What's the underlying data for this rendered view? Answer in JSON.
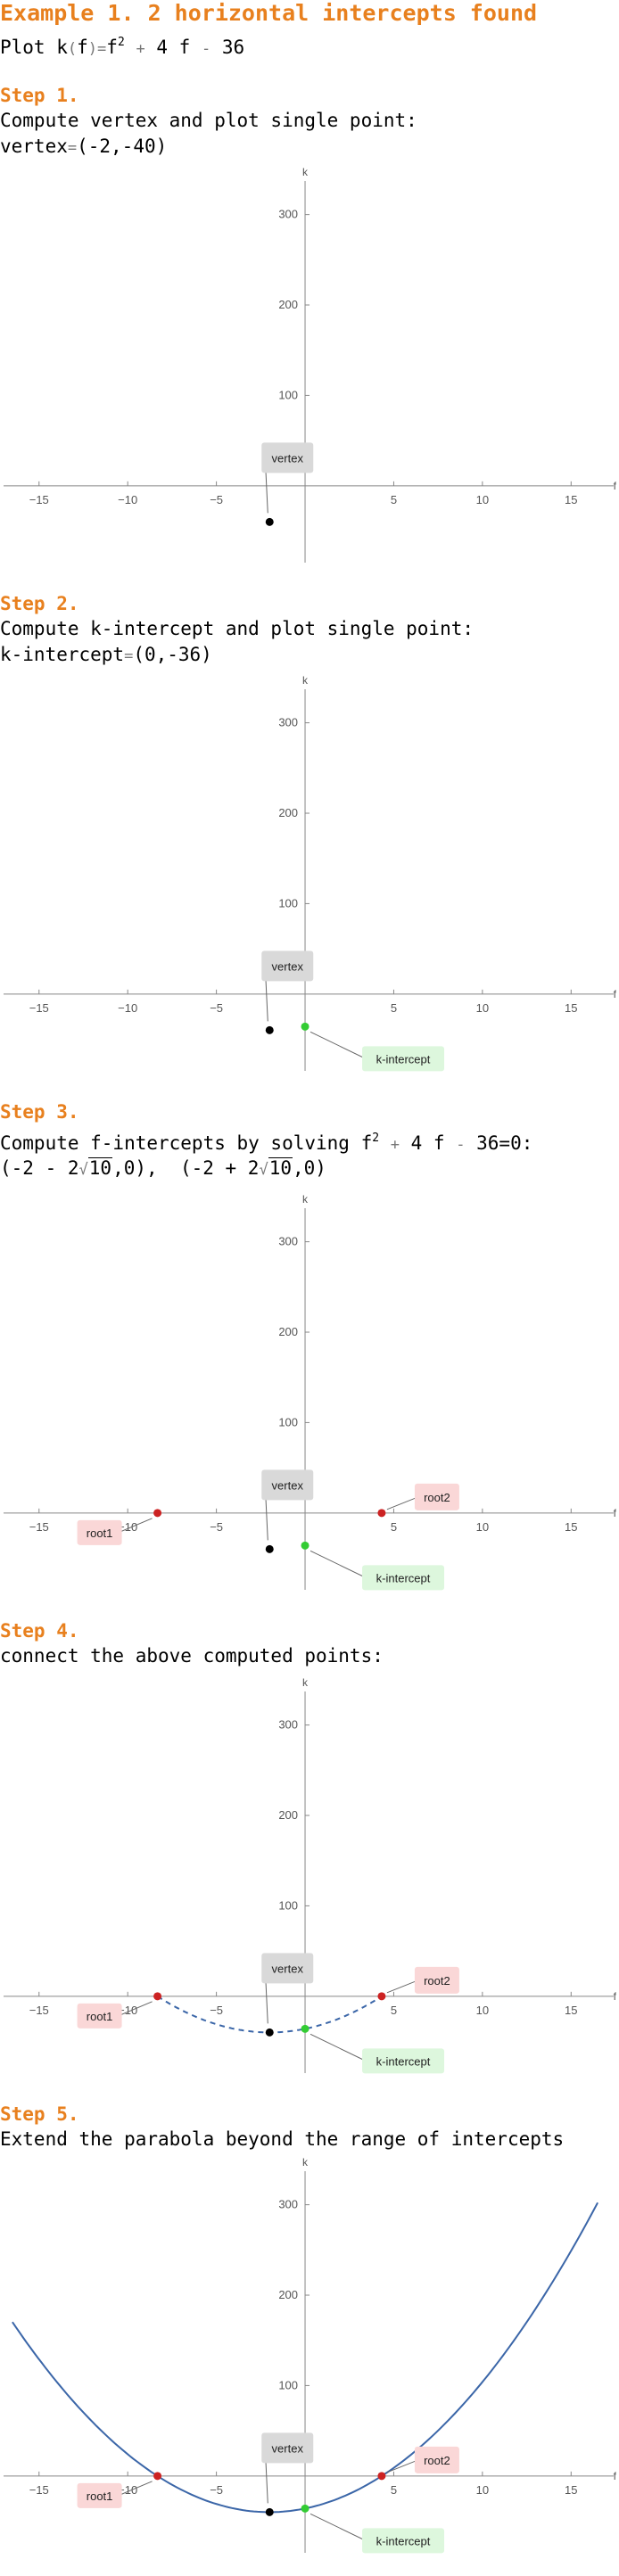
{
  "title": "Example 1. 2 horizontal intercepts found",
  "plot_function": {
    "prefix": "Plot",
    "name": "k",
    "var": "f",
    "eq": "=",
    "base": "f",
    "exp": "2",
    "plus": "+",
    "b_term": "4 f",
    "minus": "-",
    "c_term": "36"
  },
  "steps": [
    {
      "label": "Step 1.",
      "text": "Compute vertex and plot single point:"
    },
    {
      "label": "Step 2.",
      "text": "Compute k-intercept and plot single point:"
    },
    {
      "label": "Step 3.",
      "text": "Compute f-intercepts by solving"
    },
    {
      "label": "Step 4.",
      "text": "connect the above computed points:"
    },
    {
      "label": "Step 5.",
      "text": "Extend the parabola beyond the range of intercepts"
    }
  ],
  "vertex_line": {
    "name": "vertex",
    "eq": "=",
    "value": "(-2,-40)"
  },
  "kint_line": {
    "name": "k-intercept",
    "eq": "=",
    "value": "(0,-36)"
  },
  "equation": {
    "base": "f",
    "exp": "2",
    "plus": "+",
    "b_term": "4 f",
    "minus": "-",
    "rest": "36=0:"
  },
  "roots_text": {
    "r1_open": "(-2 - 2",
    "r1_rad": "10",
    "r1_close": ",0),",
    "r2_open": "(-2 + 2",
    "r2_rad": "10",
    "r2_close": ",0)"
  },
  "chart_data": {
    "type": "scatter",
    "xlabel": "f",
    "ylabel": "k",
    "xlim": [
      -17,
      17.5
    ],
    "ylim": [
      -85,
      345
    ],
    "xticks": [
      -15,
      -10,
      -5,
      5,
      10,
      15
    ],
    "yticks": [
      100,
      200,
      300
    ],
    "function": {
      "a": 1,
      "b": 4,
      "c": -36
    },
    "points": {
      "vertex": {
        "x": -2,
        "y": -40,
        "label": "vertex",
        "color": "#000000"
      },
      "kint": {
        "x": 0,
        "y": -36,
        "label": "k-intercept",
        "color": "#33CC33"
      },
      "root1": {
        "x": -8.32,
        "y": 0,
        "label": "root1",
        "color": "#CC2222"
      },
      "root2": {
        "x": 4.32,
        "y": 0,
        "label": "root2",
        "color": "#CC2222"
      }
    },
    "colors": {
      "curve": "#3B66A8",
      "axis": "#888888",
      "tick_text": "#555555",
      "vertex_label_bg": "#D9D9D9",
      "kint_label_bg": "#DDF7DD",
      "root_label_bg": "#FAD7D7"
    },
    "panels": [
      {
        "points": [
          "vertex"
        ],
        "curve": "none"
      },
      {
        "points": [
          "vertex",
          "kint"
        ],
        "curve": "none"
      },
      {
        "points": [
          "vertex",
          "kint",
          "root1",
          "root2"
        ],
        "curve": "none"
      },
      {
        "points": [
          "vertex",
          "kint",
          "root1",
          "root2"
        ],
        "curve": "dashed",
        "range": [
          -8.32,
          4.32
        ]
      },
      {
        "points": [
          "vertex",
          "kint",
          "root1",
          "root2"
        ],
        "curve": "solid",
        "range": [
          -16.5,
          16.5
        ]
      }
    ]
  }
}
